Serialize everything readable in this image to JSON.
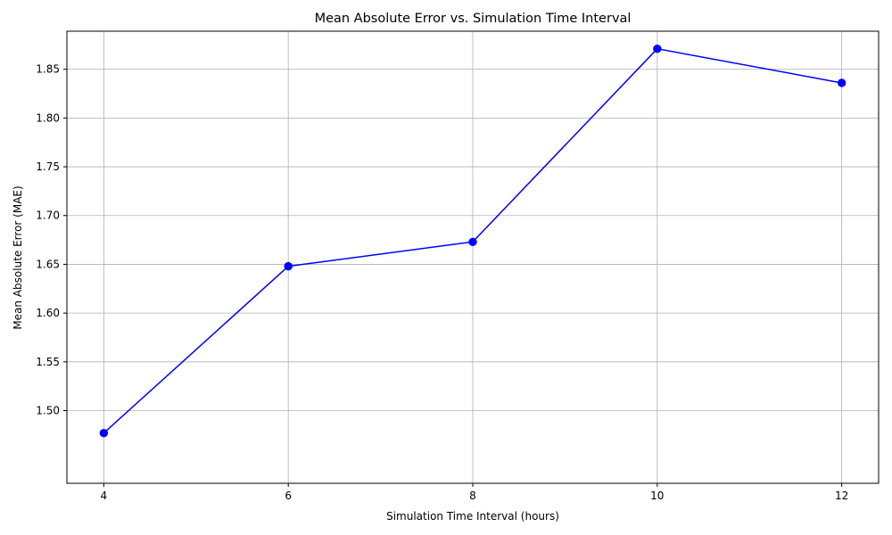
{
  "chart_data": {
    "type": "line",
    "title": "Mean Absolute Error vs. Simulation Time Interval",
    "xlabel": "Simulation Time Interval (hours)",
    "ylabel": "Mean Absolute Error (MAE)",
    "x": [
      4,
      6,
      8,
      10,
      12
    ],
    "series": [
      {
        "name": "MAE",
        "values": [
          1.477,
          1.648,
          1.673,
          1.871,
          1.836
        ],
        "color": "#0000ff",
        "marker": "circle"
      }
    ],
    "xlim": [
      3.6,
      12.4
    ],
    "ylim": [
      1.4255,
      1.889
    ],
    "xticks": [
      4,
      6,
      8,
      10,
      12
    ],
    "xtick_labels": [
      "4",
      "6",
      "8",
      "10",
      "12"
    ],
    "yticks": [
      1.5,
      1.55,
      1.6,
      1.65,
      1.7,
      1.75,
      1.8,
      1.85
    ],
    "ytick_labels": [
      "1.50",
      "1.55",
      "1.60",
      "1.65",
      "1.70",
      "1.75",
      "1.80",
      "1.85"
    ],
    "grid": true,
    "grid_color": "#b0b0b0",
    "axis_color": "#000000"
  }
}
